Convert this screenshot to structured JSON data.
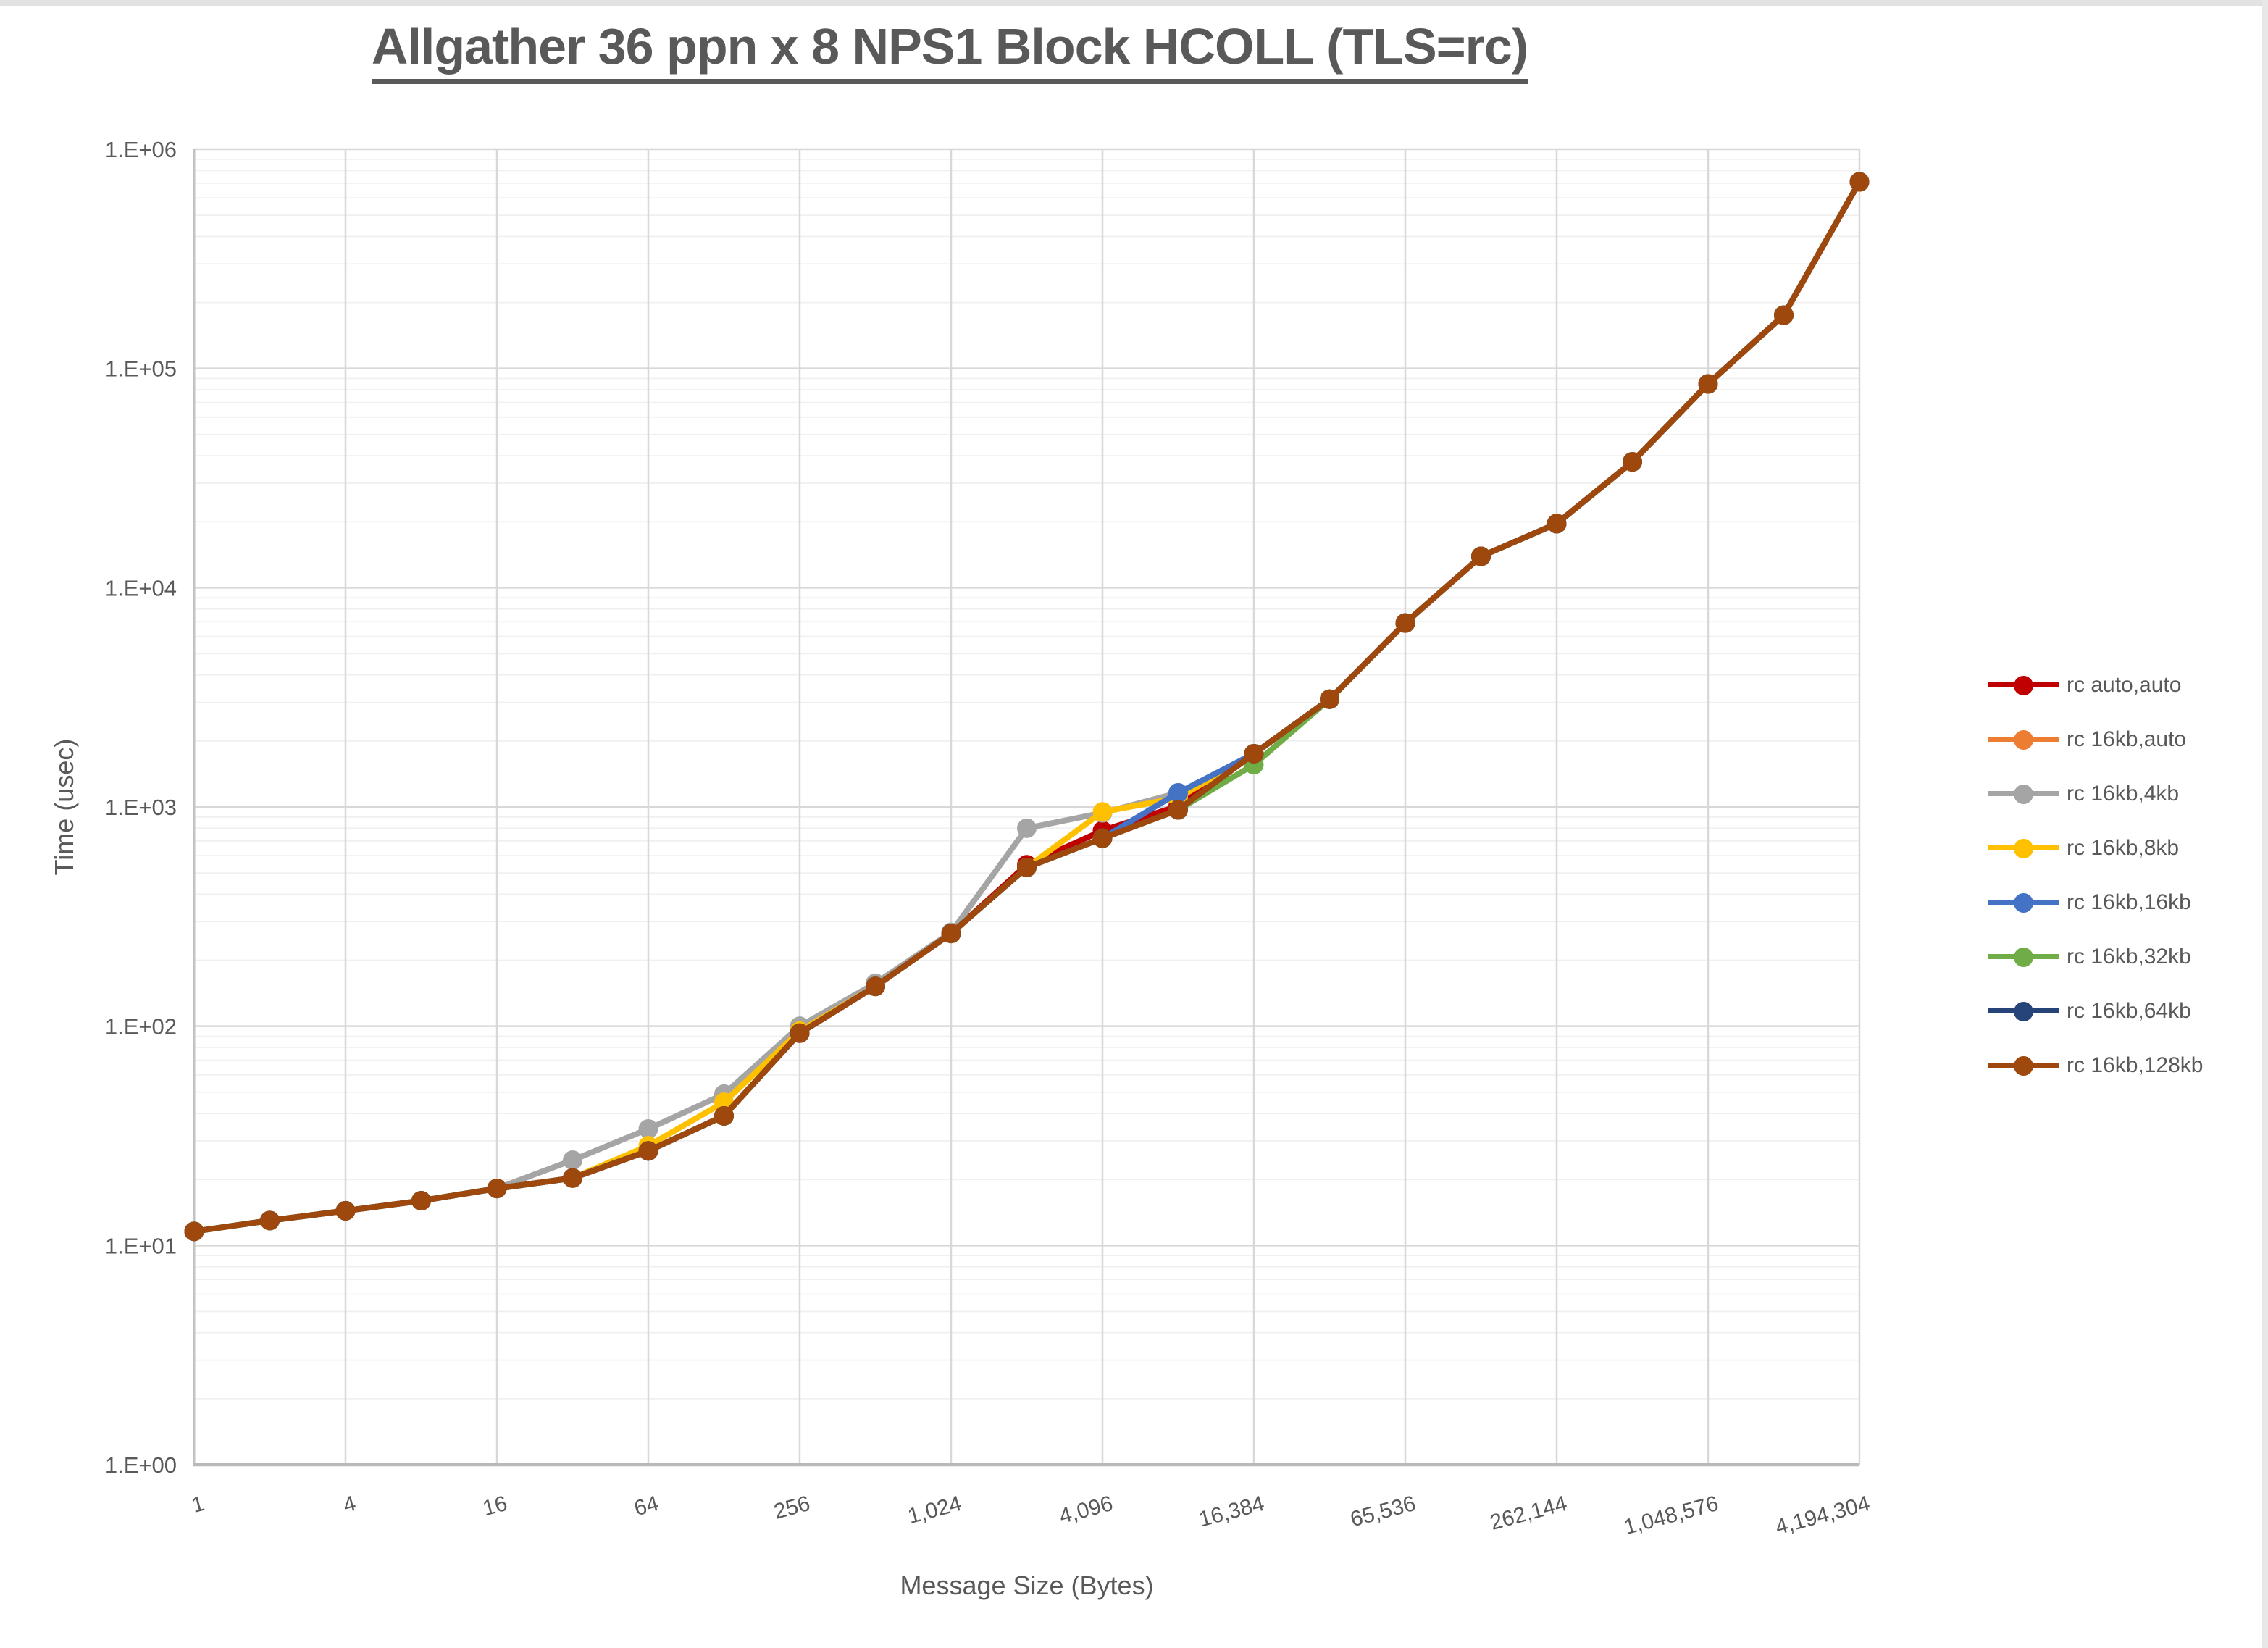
{
  "title": "Allgather 36 ppn x 8 NPS1 Block HCOLL (TLS=rc)",
  "chart_data": {
    "type": "line",
    "title": "Allgather 36 ppn x 8 NPS1 Block HCOLL (TLS=rc)",
    "xlabel": "Message Size (Bytes)",
    "ylabel": "Time (usec)",
    "x_scale": "log2_categories",
    "y_scale": "log10",
    "ylim": [
      1,
      1000000
    ],
    "grid": {
      "y_major": true,
      "y_minor_log": true,
      "x_major_every_2_categories": true
    },
    "legend_position": "right",
    "y_tick_labels": [
      "1.E+00",
      "1.E+01",
      "1.E+02",
      "1.E+03",
      "1.E+04",
      "1.E+05",
      "1.E+06"
    ],
    "x_tick_labels": [
      "1",
      "4",
      "16",
      "64",
      "256",
      "1,024",
      "4,096",
      "16,384",
      "65,536",
      "262,144",
      "1,048,576",
      "4,194,304"
    ],
    "categories": [
      1,
      2,
      4,
      8,
      16,
      32,
      64,
      128,
      256,
      512,
      1024,
      2048,
      4096,
      8192,
      16384,
      32768,
      65536,
      131072,
      262144,
      524288,
      1048576,
      2097152,
      4194304
    ],
    "series": [
      {
        "name": "rc auto,auto",
        "color": "#C00000",
        "values": [
          11.6,
          13,
          14.4,
          16,
          18.2,
          20.3,
          27,
          39,
          93,
          152,
          265,
          545,
          780,
          1010,
          1750,
          3100,
          6900,
          13900,
          19600,
          37500,
          85000,
          175000,
          710000
        ]
      },
      {
        "name": "rc 16kb,auto",
        "color": "#ED7D31",
        "values": [
          11.6,
          13,
          14.4,
          16,
          18.2,
          20.3,
          27,
          39,
          93,
          152,
          265,
          530,
          720,
          970,
          1750,
          3100,
          6900,
          13900,
          19600,
          37500,
          85000,
          175000,
          710000
        ]
      },
      {
        "name": "rc 16kb,4kb",
        "color": "#A5A5A5",
        "values": [
          11.6,
          13,
          14.4,
          16,
          18.2,
          24.5,
          34,
          49,
          100,
          157,
          268,
          800,
          940,
          1160,
          1750,
          3100,
          6900,
          13900,
          19600,
          37500,
          85000,
          175000,
          710000
        ]
      },
      {
        "name": "rc 16kb,8kb",
        "color": "#FFC000",
        "values": [
          11.6,
          13,
          14.4,
          16,
          18.2,
          20.3,
          28.5,
          45,
          95,
          152,
          265,
          530,
          950,
          1100,
          1750,
          3100,
          6900,
          13900,
          19600,
          37500,
          85000,
          175000,
          710000
        ]
      },
      {
        "name": "rc 16kb,16kb",
        "color": "#4472C4",
        "values": [
          11.6,
          13,
          14.4,
          16,
          18.2,
          20.3,
          27,
          39,
          93,
          152,
          265,
          530,
          720,
          1160,
          1750,
          3100,
          6900,
          13900,
          19600,
          37500,
          85000,
          175000,
          710000
        ]
      },
      {
        "name": "rc 16kb,32kb",
        "color": "#70AD47",
        "values": [
          11.6,
          13,
          14.4,
          16,
          18.2,
          20.3,
          27,
          39,
          93,
          152,
          265,
          530,
          720,
          970,
          1560,
          3100,
          6900,
          13900,
          19600,
          37500,
          85000,
          175000,
          710000
        ]
      },
      {
        "name": "rc 16kb,64kb",
        "color": "#264478",
        "values": [
          11.6,
          13,
          14.4,
          16,
          18.2,
          20.3,
          27,
          39,
          93,
          152,
          265,
          530,
          720,
          970,
          1750,
          3100,
          6900,
          13900,
          19600,
          37500,
          85000,
          175000,
          710000
        ]
      },
      {
        "name": "rc 16kb,128kb",
        "color": "#9E480E",
        "values": [
          11.6,
          13,
          14.4,
          16,
          18.2,
          20.3,
          27,
          39,
          93,
          152,
          265,
          530,
          720,
          970,
          1750,
          3100,
          6900,
          13900,
          19600,
          37500,
          85000,
          175000,
          710000
        ]
      }
    ]
  }
}
